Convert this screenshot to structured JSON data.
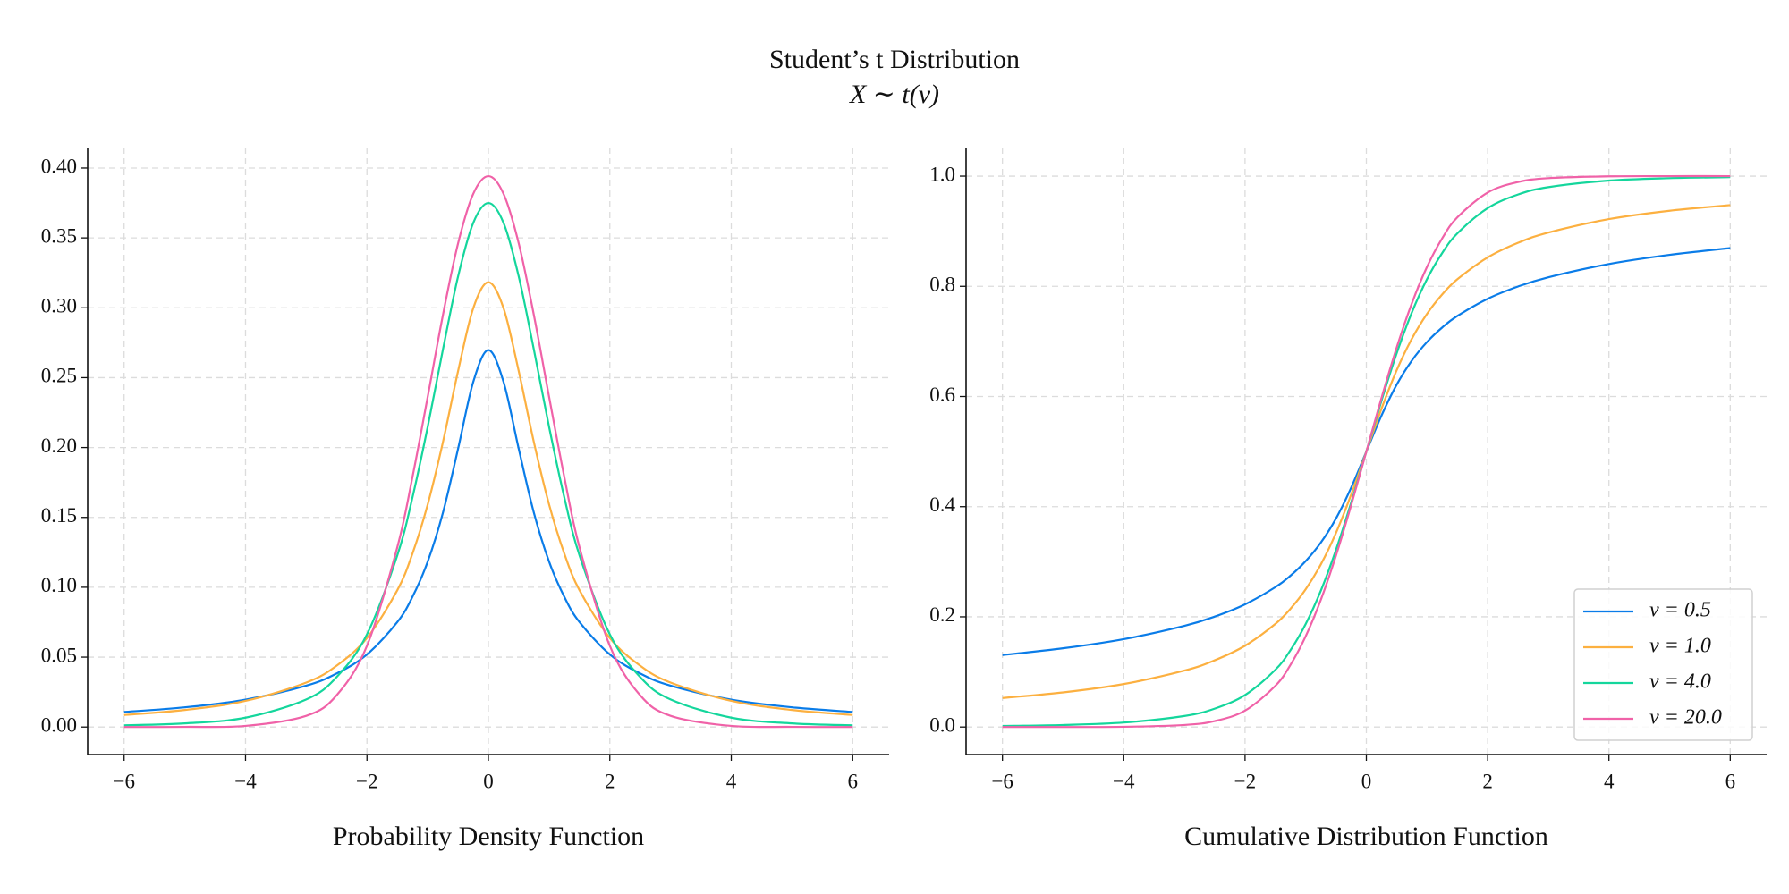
{
  "title": "Student’s t Distribution",
  "subtitle": "X ∼ t(ν)",
  "chart_data": [
    {
      "type": "line",
      "xlabel": "Probability Density Function",
      "x": [
        -6,
        -5,
        -4,
        -3,
        -2.5,
        -2,
        -1.5,
        -1.25,
        -1,
        -0.75,
        -0.5,
        -0.25,
        0,
        0.25,
        0.5,
        0.75,
        1,
        1.25,
        1.5,
        2,
        2.5,
        3,
        4,
        5,
        6
      ],
      "series": [
        {
          "color": "#0a7ce8",
          "values": [
            0.0108,
            0.0141,
            0.0196,
            0.0296,
            0.0383,
            0.0519,
            0.0751,
            0.0932,
            0.1183,
            0.1532,
            0.199,
            0.2469,
            0.2697,
            0.2469,
            0.199,
            0.1532,
            0.1183,
            0.0932,
            0.0751,
            0.0519,
            0.0383,
            0.0296,
            0.0196,
            0.0141,
            0.0108
          ]
        },
        {
          "color": "#fcb040",
          "values": [
            0.0086,
            0.0122,
            0.0187,
            0.0318,
            0.0439,
            0.0637,
            0.0979,
            0.1242,
            0.1592,
            0.2037,
            0.2546,
            0.2996,
            0.3183,
            0.2996,
            0.2546,
            0.2037,
            0.1592,
            0.1242,
            0.0979,
            0.0637,
            0.0439,
            0.0318,
            0.0187,
            0.0122,
            0.0086
          ]
        },
        {
          "color": "#14d69c",
          "values": [
            0.0012,
            0.0026,
            0.0067,
            0.0197,
            0.0357,
            0.0663,
            0.1229,
            0.1644,
            0.2147,
            0.2699,
            0.3223,
            0.3607,
            0.375,
            0.3607,
            0.3223,
            0.2699,
            0.2147,
            0.1644,
            0.1229,
            0.0663,
            0.0357,
            0.0197,
            0.0067,
            0.0026,
            0.0012
          ]
        },
        {
          "color": "#f062a8",
          "values": [
            0.0,
            0.0001,
            0.0008,
            0.008,
            0.0227,
            0.0581,
            0.1287,
            0.179,
            0.2362,
            0.2946,
            0.346,
            0.3815,
            0.3942,
            0.3815,
            0.346,
            0.2946,
            0.2362,
            0.179,
            0.1287,
            0.0581,
            0.0227,
            0.008,
            0.0008,
            0.0001,
            0.0
          ]
        }
      ],
      "xlim": [
        -6.6,
        6.6
      ],
      "ylim": [
        -0.0197,
        0.4147
      ],
      "xticks": [
        {
          "value": -6,
          "label": "−6"
        },
        {
          "value": -4,
          "label": "−4"
        },
        {
          "value": -2,
          "label": "−2"
        },
        0,
        2,
        4,
        6
      ],
      "yticks": [
        {
          "value": 0,
          "label": "0.00"
        },
        {
          "value": 0.05,
          "label": "0.05"
        },
        {
          "value": 0.1,
          "label": "0.10"
        },
        {
          "value": 0.15,
          "label": "0.15"
        },
        {
          "value": 0.2,
          "label": "0.20"
        },
        {
          "value": 0.25,
          "label": "0.25"
        },
        {
          "value": 0.3,
          "label": "0.30"
        },
        {
          "value": 0.35,
          "label": "0.35"
        },
        {
          "value": 0.4,
          "label": "0.40"
        }
      ],
      "grid": true
    },
    {
      "type": "line",
      "xlabel": "Cumulative Distribution Function",
      "x": [
        -6,
        -5,
        -4,
        -3,
        -2.5,
        -2,
        -1.5,
        -1.25,
        -1,
        -0.75,
        -0.5,
        -0.25,
        0,
        0.25,
        0.5,
        0.75,
        1,
        1.25,
        1.5,
        2,
        2.5,
        3,
        4,
        5,
        6
      ],
      "series": [
        {
          "name": "ν = 0.5",
          "color": "#0a7ce8",
          "values": [
            0.1306,
            0.1429,
            0.1595,
            0.1836,
            0.2004,
            0.2227,
            0.2539,
            0.2748,
            0.3011,
            0.3348,
            0.3786,
            0.4346,
            0.5,
            0.5654,
            0.6214,
            0.6652,
            0.6989,
            0.7252,
            0.7461,
            0.7773,
            0.7996,
            0.8164,
            0.8405,
            0.8571,
            0.8694
          ]
        },
        {
          "name": "ν = 1.0",
          "color": "#fcb040",
          "values": [
            0.0526,
            0.0628,
            0.078,
            0.1024,
            0.1211,
            0.1476,
            0.1872,
            0.2148,
            0.25,
            0.2952,
            0.3524,
            0.422,
            0.5,
            0.578,
            0.6476,
            0.7048,
            0.75,
            0.7852,
            0.8128,
            0.8524,
            0.8789,
            0.8976,
            0.922,
            0.9372,
            0.9474
          ]
        },
        {
          "name": "ν = 4.0",
          "color": "#14d69c",
          "values": [
            0.0019,
            0.0037,
            0.0081,
            0.02,
            0.0334,
            0.0581,
            0.104,
            0.1397,
            0.187,
            0.2475,
            0.3217,
            0.4075,
            0.5,
            0.5925,
            0.6783,
            0.7525,
            0.813,
            0.8603,
            0.896,
            0.9419,
            0.9666,
            0.98,
            0.9919,
            0.9963,
            0.9981
          ]
        },
        {
          "name": "ν = 20.0",
          "color": "#f062a8",
          "values": [
            0.0,
            0.0,
            0.0004,
            0.0037,
            0.0108,
            0.0298,
            0.0748,
            0.113,
            0.1647,
            0.231,
            0.3113,
            0.4026,
            0.5,
            0.5974,
            0.6887,
            0.769,
            0.8353,
            0.887,
            0.9252,
            0.9702,
            0.9892,
            0.9963,
            0.9996,
            1.0,
            1.0
          ]
        }
      ],
      "xlim": [
        -6.6,
        6.6
      ],
      "ylim": [
        -0.05,
        1.052
      ],
      "xticks": [
        {
          "value": -6,
          "label": "−6"
        },
        {
          "value": -4,
          "label": "−4"
        },
        {
          "value": -2,
          "label": "−2"
        },
        0,
        2,
        4,
        6
      ],
      "yticks": [
        {
          "value": 0,
          "label": "0.0"
        },
        {
          "value": 0.2,
          "label": "0.2"
        },
        {
          "value": 0.4,
          "label": "0.4"
        },
        {
          "value": 0.6,
          "label": "0.6"
        },
        {
          "value": 0.8,
          "label": "0.8"
        },
        {
          "value": 1,
          "label": "1.0"
        }
      ],
      "grid": true,
      "legend": "lower right"
    }
  ]
}
